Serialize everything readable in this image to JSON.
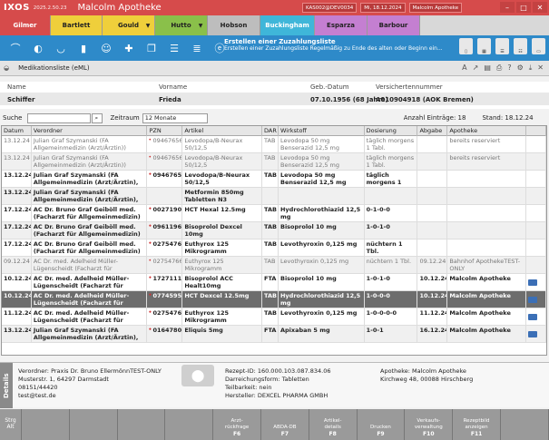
{
  "title": {
    "app": "IXOS",
    "version": "2025.2.50.23",
    "customer": "Malcolm Apotheke",
    "system1": "KAS002@DEV0034",
    "system2": "Mi, 18.12.2024",
    "user": "Malcolm Apotheke"
  },
  "tabs": [
    {
      "label": "Gilmer",
      "color": "#d64b4b",
      "text": "#fff"
    },
    {
      "label": "Bartlett",
      "color": "#efcf3b",
      "text": "#222"
    },
    {
      "label": "Gould",
      "color": "#efcf3b",
      "text": "#222"
    },
    {
      "label": "Hutto",
      "color": "#8ac04a",
      "text": "#222"
    },
    {
      "label": "Hobson",
      "color": "#bdbdbd",
      "text": "#222"
    },
    {
      "label": "Buckingham",
      "color": "#3fb6d9",
      "text": "#fff"
    },
    {
      "label": "Esparza",
      "color": "#c47fd1",
      "text": "#222"
    },
    {
      "label": "Barbour",
      "color": "#c47fd1",
      "text": "#222"
    }
  ],
  "notice": {
    "title": "Erstellen einer Zuzahlungsliste",
    "text": "Erstellen einer Zuzahlungsliste Regelmäßig zu Ende des alten oder Beginn ein..."
  },
  "section": {
    "label": "Medikationsliste (eML)"
  },
  "patient": {
    "headers": [
      "Name",
      "Vorname",
      "Geb.-Datum",
      "Versichertennummer"
    ],
    "values": [
      "Schiffer",
      "Frieda",
      "07.10.1956 (68 Jahre)",
      "A010904918 (AOK Bremen)"
    ]
  },
  "search": {
    "label": "Suche",
    "zeitraum_label": "Zeitraum",
    "zeitraum": "12 Monate",
    "count_label": "Anzahl Einträge: 18",
    "stand": "Stand: 18.12.24"
  },
  "grid": {
    "headers": [
      "Datum",
      "Verordner",
      "PZN",
      "Artikel",
      "DAR",
      "Wirkstoff",
      "Dosierung",
      "Abgabe",
      "Apotheke"
    ],
    "rows": [
      {
        "style": "gray",
        "cells": [
          "13.12.24",
          "Julian Graf Szymanski (FA Allgemeinmedizin (Arzt/Ärztin))",
          "09467656",
          "Levodopa/B-Neurax 50/12,5",
          "TAB",
          "Levodopa 50 mg Benserazid 12,5 mg",
          "täglich morgens 1 Tabl.",
          "",
          "bereits reserviert"
        ]
      },
      {
        "style": "gray",
        "cells": [
          "13.12.24",
          "Julian Graf Szymanski (FA Allgemeinmedizin (Arzt/Ärztin))",
          "09467656",
          "Levodopa/B-Neurax 50/12,5",
          "TAB",
          "Levodopa 50 mg Benserazid 12,5 mg",
          "täglich morgens 1 Tabl.",
          "",
          "bereits reserviert"
        ]
      },
      {
        "style": "bold",
        "cells": [
          "13.12.24",
          "Julian Graf Szymanski (FA Allgemeinmedizin (Arzt/Ärztin), FA",
          "09467656",
          "Levodopa/B-Neurax 50/12,5",
          "TAB",
          "Levodopa 50 mg Benserazid 12,5 mg",
          "täglich morgens 1 Tabl.",
          "",
          ""
        ]
      },
      {
        "style": "bold",
        "cells": [
          "13.12.24",
          "Julian Graf Szymanski (FA Allgemeinmedizin (Arzt/Ärztin), FA",
          "",
          "Metformin 850mg Tabletten N3",
          "",
          "",
          "",
          "",
          ""
        ]
      },
      {
        "style": "bold",
        "cells": [
          "17.12.24",
          "AC Dr. Bruno Graf Geiböll med. (Facharzt für Allgemeinmedizin)",
          "00271905",
          "HCT Hexal 12.5mg",
          "TAB",
          "Hydrochlorothiazid 12,5 mg",
          "0-1-0-0",
          "",
          ""
        ]
      },
      {
        "style": "bold",
        "cells": [
          "17.12.24",
          "AC Dr. Bruno Graf Geiböll med. (Facharzt für Allgemeinmedizin)",
          "09611969",
          "Bisoprolol Dexcel 10mg",
          "TAB",
          "Bisoprolol 10 mg",
          "1-0-1-0",
          "",
          ""
        ]
      },
      {
        "style": "bold",
        "cells": [
          "17.12.24",
          "AC Dr. Bruno Graf Geiböll med. (Facharzt für Allgemeinmedizin)",
          "02754766",
          "Euthyrox 125 Mikrogramm",
          "TAB",
          "Levothyroxin 0,125 mg",
          "nüchtern 1 Tbl.",
          "",
          ""
        ]
      },
      {
        "style": "gray",
        "cells": [
          "09.12.24",
          "AC Dr. med. Adelheid Müller-Lügenscheidt (Facharzt für",
          "02754766",
          "Euthyrox 125 Mikrogramm",
          "TAB",
          "Levothyroxin 0,125 mg",
          "nüchtern 1 Tbl.",
          "09.12.24",
          "Bahnhof ApothekeTEST-ONLY"
        ]
      },
      {
        "style": "bold",
        "cells": [
          "10.12.24",
          "AC Dr. med. Adelheid Müller-Lügenscheidt (Facharzt für",
          "17271111",
          "Bisoprolol ACC Healt10mg",
          "FTA",
          "Bisoprolol 10 mg",
          "1-0-1-0",
          "10.12.24",
          "Malcolm Apotheke"
        ]
      },
      {
        "style": "sel",
        "cells": [
          "10.12.24",
          "AC Dr. med. Adelheid Müller-Lügenscheidt (Facharzt für",
          "07745950",
          "HCT Dexcel 12.5mg",
          "TAB",
          "Hydrochlorothiazid 12,5 mg",
          "1-0-0-0",
          "10.12.24",
          "Malcolm Apotheke"
        ]
      },
      {
        "style": "bold",
        "cells": [
          "11.12.24",
          "AC Dr. med. Adelheid Müller-Lügenscheidt (Facharzt für",
          "02754766",
          "Euthyrox 125 Mikrogramm",
          "TAB",
          "Levothyroxin 0,125 mg",
          "1-0-0-0-0",
          "11.12.24",
          "Malcolm Apotheke"
        ]
      },
      {
        "style": "bold",
        "cells": [
          "13.12.24",
          "Julian Graf Szymanski (FA Allgemeinmedizin (Arzt/Ärztin), FA",
          "01647809",
          "Eliquis 5mg",
          "FTA",
          "Apixaban 5 mg",
          "1-0-1",
          "16.12.24",
          "Malcolm Apotheke"
        ]
      }
    ]
  },
  "detail": {
    "tab": "Details",
    "verordner": "Verordner: Praxis Dr. Bruno EllermönnTEST-ONLY",
    "addr1": "Musterstr. 1, 64297 Darmstadt",
    "phone": "08151/44420",
    "email": "test@test.de",
    "rezept": "Rezept-ID: 160.000.103.087.834.06",
    "form": "Darreichungsform: Tabletten",
    "teil": "Teilbarkeit: nein",
    "hersteller": "Hersteller: DEXCEL PHARMA GMBH",
    "apotheke": "Apotheke: Malcolm Apotheke",
    "apo_addr": "Kirchweg 48, 00088 Hirschberg"
  },
  "fkeys": [
    {
      "label": "Strg\nAlt",
      "key": ""
    },
    {
      "label": "",
      "key": ""
    },
    {
      "label": "",
      "key": ""
    },
    {
      "label": "",
      "key": ""
    },
    {
      "label": "",
      "key": ""
    },
    {
      "label": "Arzt-\nrückfrage",
      "key": "F6"
    },
    {
      "label": "ABDA-DB",
      "key": "F7"
    },
    {
      "label": "Artikel-\ndetails",
      "key": "F8"
    },
    {
      "label": "Drucken",
      "key": "F9"
    },
    {
      "label": "Verkaufs-\nverwaltung",
      "key": "F10"
    },
    {
      "label": "Rezeptbild\nanzeigen",
      "key": "F11"
    },
    {
      "label": "",
      "key": ""
    }
  ]
}
